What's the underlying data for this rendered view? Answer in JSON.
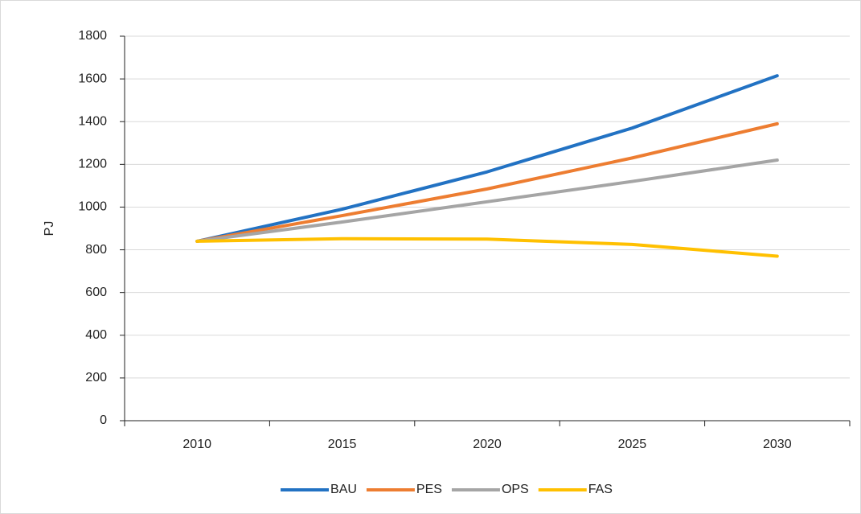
{
  "chart_data": {
    "type": "line",
    "y_label": "PJ",
    "categories": [
      "2010",
      "2015",
      "2020",
      "2025",
      "2030"
    ],
    "series": [
      {
        "name": "BAU",
        "color": "#2272c3",
        "values": [
          840,
          990,
          1165,
          1370,
          1615
        ]
      },
      {
        "name": "PES",
        "color": "#ed7d31",
        "values": [
          840,
          960,
          1085,
          1230,
          1390
        ]
      },
      {
        "name": "OPS",
        "color": "#a5a5a5",
        "values": [
          840,
          930,
          1025,
          1120,
          1220
        ]
      },
      {
        "name": "FAS",
        "color": "#ffc000",
        "values": [
          840,
          852,
          850,
          825,
          770
        ]
      }
    ],
    "ylim": [
      0,
      1800
    ],
    "yticks": [
      0,
      200,
      400,
      600,
      800,
      1000,
      1200,
      1400,
      1600,
      1800
    ],
    "grid": true,
    "legend": "bottom"
  }
}
